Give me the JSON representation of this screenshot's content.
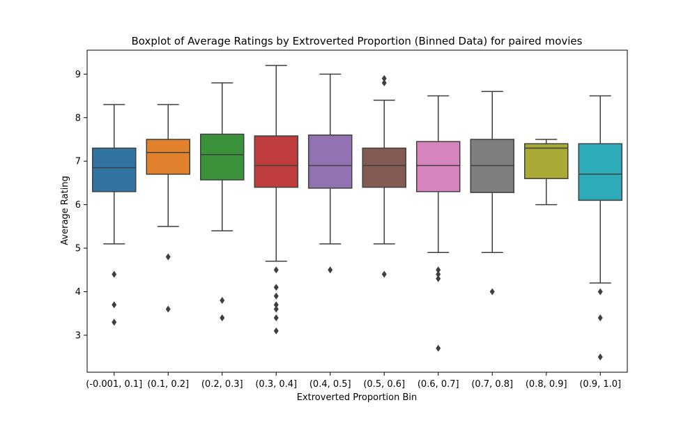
{
  "chart_data": {
    "type": "box",
    "title": "Boxplot of Average Ratings by Extroverted Proportion (Binned Data) for paired movies",
    "xlabel": "Extroverted Proportion Bin",
    "ylabel": "Average Rating",
    "ylim": [
      2.15,
      9.55
    ],
    "yticks": [
      3,
      4,
      5,
      6,
      7,
      8,
      9
    ],
    "grid": false,
    "categories": [
      "(-0.001, 0.1]",
      "(0.1, 0.2]",
      "(0.2, 0.3]",
      "(0.3, 0.4]",
      "(0.4, 0.5]",
      "(0.5, 0.6]",
      "(0.6, 0.7]",
      "(0.7, 0.8]",
      "(0.8, 0.9]",
      "(0.9, 1.0]"
    ],
    "boxes": [
      {
        "category": "(-0.001, 0.1]",
        "color": "#3274a1",
        "whisker_low": 5.1,
        "q1": 6.3,
        "median": 6.85,
        "q3": 7.3,
        "whisker_high": 8.3,
        "outliers": [
          4.4,
          3.7,
          3.3
        ]
      },
      {
        "category": "(0.1, 0.2]",
        "color": "#e1812c",
        "whisker_low": 5.5,
        "q1": 6.7,
        "median": 7.2,
        "q3": 7.5,
        "whisker_high": 8.3,
        "outliers": [
          4.8,
          3.6
        ]
      },
      {
        "category": "(0.2, 0.3]",
        "color": "#3a923a",
        "whisker_low": 5.4,
        "q1": 6.57,
        "median": 7.15,
        "q3": 7.62,
        "whisker_high": 8.8,
        "outliers": [
          3.8,
          3.4
        ]
      },
      {
        "category": "(0.3, 0.4]",
        "color": "#c03d3e",
        "whisker_low": 4.7,
        "q1": 6.4,
        "median": 6.9,
        "q3": 7.58,
        "whisker_high": 9.2,
        "outliers": [
          4.5,
          4.1,
          3.9,
          3.7,
          3.6,
          3.4,
          3.1
        ]
      },
      {
        "category": "(0.4, 0.5]",
        "color": "#9372b2",
        "whisker_low": 5.1,
        "q1": 6.38,
        "median": 6.9,
        "q3": 7.6,
        "whisker_high": 9.0,
        "outliers": [
          4.5
        ]
      },
      {
        "category": "(0.5, 0.6]",
        "color": "#845b53",
        "whisker_low": 5.1,
        "q1": 6.4,
        "median": 6.9,
        "q3": 7.3,
        "whisker_high": 8.4,
        "outliers": [
          8.9,
          8.8,
          4.4
        ]
      },
      {
        "category": "(0.6, 0.7]",
        "color": "#d684bd",
        "whisker_low": 4.9,
        "q1": 6.3,
        "median": 6.9,
        "q3": 7.45,
        "whisker_high": 8.5,
        "outliers": [
          4.5,
          4.4,
          4.3,
          2.7
        ]
      },
      {
        "category": "(0.7, 0.8]",
        "color": "#7f7f7f",
        "whisker_low": 4.9,
        "q1": 6.28,
        "median": 6.9,
        "q3": 7.5,
        "whisker_high": 8.6,
        "outliers": [
          4.0
        ]
      },
      {
        "category": "(0.8, 0.9]",
        "color": "#a9aa35",
        "whisker_low": 6.0,
        "q1": 6.6,
        "median": 7.3,
        "q3": 7.4,
        "whisker_high": 7.5,
        "outliers": []
      },
      {
        "category": "(0.9, 1.0]",
        "color": "#2eabb8",
        "whisker_low": 4.2,
        "q1": 6.1,
        "median": 6.7,
        "q3": 7.4,
        "whisker_high": 8.5,
        "outliers": [
          4.0,
          3.4,
          2.5
        ]
      }
    ],
    "line_color": "#3f3f3f"
  }
}
